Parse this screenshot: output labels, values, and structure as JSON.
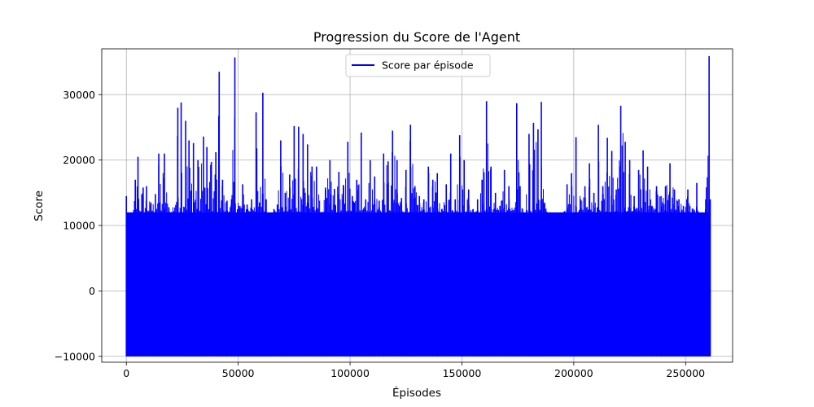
{
  "chart_data": {
    "type": "line",
    "title": "Progression du Score de l'Agent",
    "xlabel": "Épisodes",
    "ylabel": "Score",
    "xlim": [
      -11000,
      271000
    ],
    "ylim": [
      -10900,
      37000
    ],
    "grid": true,
    "legend_position": "top-center",
    "series_color": "#0000ff",
    "x_ticks": [
      0,
      50000,
      100000,
      150000,
      200000,
      250000
    ],
    "x_tick_labels": [
      "0",
      "50000",
      "100000",
      "150000",
      "200000",
      "250000"
    ],
    "y_ticks": [
      -10000,
      0,
      10000,
      20000,
      30000
    ],
    "y_tick_labels": [
      "−10000",
      "0",
      "10000",
      "20000",
      "30000"
    ],
    "series": [
      {
        "name": "Score par épisode",
        "x_range": [
          0,
          261000
        ],
        "floor": -10000,
        "band_top_approx": 12000,
        "peaks": [
          [
            0,
            14500
          ],
          [
            1200,
            6700
          ],
          [
            2800,
            10800
          ],
          [
            4000,
            17000
          ],
          [
            5200,
            20500
          ],
          [
            7500,
            15800
          ],
          [
            9000,
            16000
          ],
          [
            11000,
            13500
          ],
          [
            13000,
            14800
          ],
          [
            14500,
            21000
          ],
          [
            17000,
            21000
          ],
          [
            19000,
            12800
          ],
          [
            20500,
            12000
          ],
          [
            23000,
            28000
          ],
          [
            24500,
            28800
          ],
          [
            26500,
            26000
          ],
          [
            28000,
            23000
          ],
          [
            30000,
            22600
          ],
          [
            32000,
            20000
          ],
          [
            34500,
            23600
          ],
          [
            36000,
            22000
          ],
          [
            38000,
            19700
          ],
          [
            40000,
            21200
          ],
          [
            41500,
            33500
          ],
          [
            43000,
            17000
          ],
          [
            45000,
            13800
          ],
          [
            47000,
            14000
          ],
          [
            48500,
            35700
          ],
          [
            50500,
            13000
          ],
          [
            52000,
            16300
          ],
          [
            54000,
            13200
          ],
          [
            56000,
            14000
          ],
          [
            58000,
            27300
          ],
          [
            59500,
            13500
          ],
          [
            61000,
            30300
          ],
          [
            62500,
            14000
          ],
          [
            64000,
            6500
          ],
          [
            66000,
            12500
          ],
          [
            67500,
            13200
          ],
          [
            69000,
            23000
          ],
          [
            71000,
            15000
          ],
          [
            73000,
            17800
          ],
          [
            75000,
            25200
          ],
          [
            77000,
            25100
          ],
          [
            79000,
            24000
          ],
          [
            81000,
            22400
          ],
          [
            83000,
            19000
          ],
          [
            85000,
            19000
          ],
          [
            87000,
            12000
          ],
          [
            89000,
            15800
          ],
          [
            91000,
            20000
          ],
          [
            93000,
            15600
          ],
          [
            95000,
            18200
          ],
          [
            97000,
            16200
          ],
          [
            99000,
            22800
          ],
          [
            101000,
            14500
          ],
          [
            103000,
            17000
          ],
          [
            105000,
            24200
          ],
          [
            107000,
            14000
          ],
          [
            109000,
            20000
          ],
          [
            111000,
            17500
          ],
          [
            113000,
            13800
          ],
          [
            115000,
            21000
          ],
          [
            117000,
            19800
          ],
          [
            119000,
            24500
          ],
          [
            121000,
            20000
          ],
          [
            123000,
            14200
          ],
          [
            125000,
            18500
          ],
          [
            127000,
            25400
          ],
          [
            129000,
            16000
          ],
          [
            131000,
            14500
          ],
          [
            133000,
            14000
          ],
          [
            135000,
            19000
          ],
          [
            137000,
            17000
          ],
          [
            139000,
            18000
          ],
          [
            141000,
            12500
          ],
          [
            143000,
            16300
          ],
          [
            145000,
            21000
          ],
          [
            147000,
            14000
          ],
          [
            149000,
            23800
          ],
          [
            151000,
            20000
          ],
          [
            153000,
            15500
          ],
          [
            155000,
            12500
          ],
          [
            157000,
            14000
          ],
          [
            159000,
            17000
          ],
          [
            161000,
            29000
          ],
          [
            163000,
            19000
          ],
          [
            165000,
            15000
          ],
          [
            167000,
            13000
          ],
          [
            169000,
            18500
          ],
          [
            171000,
            16000
          ],
          [
            173000,
            12000
          ],
          [
            174500,
            28700
          ],
          [
            176000,
            16000
          ],
          [
            178000,
            11500
          ],
          [
            180000,
            24000
          ],
          [
            182000,
            25700
          ],
          [
            184000,
            24700
          ],
          [
            185500,
            28900
          ],
          [
            187000,
            13500
          ],
          [
            189000,
            11000
          ],
          [
            191000,
            8000
          ],
          [
            193000,
            10000
          ],
          [
            195000,
            12000
          ],
          [
            197000,
            16300
          ],
          [
            199000,
            18000
          ],
          [
            201000,
            23500
          ],
          [
            203000,
            14000
          ],
          [
            205000,
            16000
          ],
          [
            207000,
            19500
          ],
          [
            209000,
            15000
          ],
          [
            211000,
            25400
          ],
          [
            213000,
            16000
          ],
          [
            215000,
            23400
          ],
          [
            217000,
            21400
          ],
          [
            219000,
            15500
          ],
          [
            221000,
            28300
          ],
          [
            223000,
            22800
          ],
          [
            225000,
            20000
          ],
          [
            227000,
            14500
          ],
          [
            229000,
            18500
          ],
          [
            231000,
            21500
          ],
          [
            233000,
            19000
          ],
          [
            235000,
            13000
          ],
          [
            237000,
            16000
          ],
          [
            239000,
            14500
          ],
          [
            241000,
            16000
          ],
          [
            243000,
            19500
          ],
          [
            245000,
            15500
          ],
          [
            247000,
            14000
          ],
          [
            249000,
            13000
          ],
          [
            251000,
            15500
          ],
          [
            253000,
            12600
          ],
          [
            255000,
            16500
          ],
          [
            257000,
            9000
          ],
          [
            259000,
            14000
          ],
          [
            260500,
            35900
          ],
          [
            261000,
            14000
          ]
        ]
      }
    ]
  }
}
